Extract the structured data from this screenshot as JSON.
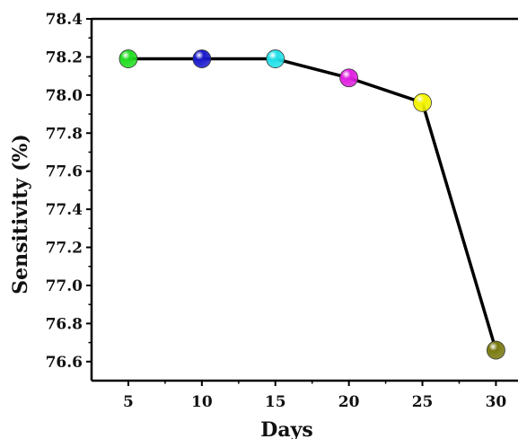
{
  "chart_data": {
    "type": "line",
    "xlabel": "Days",
    "ylabel": "Sensitivity (%)",
    "x": [
      5,
      10,
      15,
      20,
      25,
      30
    ],
    "series": [
      {
        "values": [
          78.19,
          78.19,
          78.19,
          78.09,
          77.96,
          76.66
        ],
        "marker_colors": [
          "#22dd22",
          "#1a1acc",
          "#22e0e8",
          "#e020e0",
          "#f4f400",
          "#7a7a10"
        ],
        "line_color": "#000000"
      }
    ],
    "xlim": [
      2.5,
      31.5
    ],
    "ylim": [
      76.5,
      78.4
    ],
    "x_ticks": [
      "5",
      "10",
      "15",
      "20",
      "25",
      "30"
    ],
    "y_ticks": [
      "76.6",
      "76.8",
      "77.0",
      "77.2",
      "77.4",
      "77.6",
      "77.8",
      "78.0",
      "78.2",
      "78.4"
    ],
    "grid": false,
    "legend": "none"
  }
}
